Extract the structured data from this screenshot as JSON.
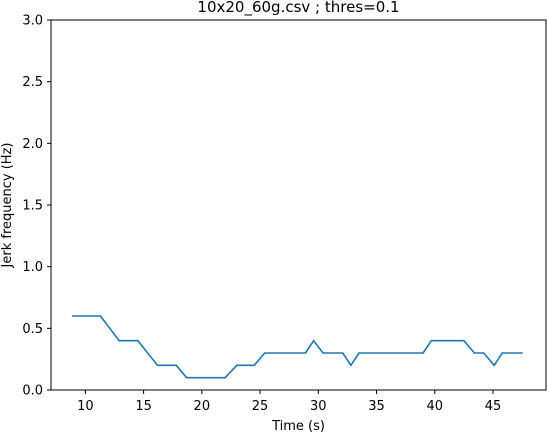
{
  "chart_data": {
    "type": "line",
    "title": "10x20_60g.csv ; thres=0.1",
    "xlabel": "Time (s)",
    "ylabel": "Jerk frequency (Hz)",
    "xlim": [
      7.05,
      49.55
    ],
    "ylim": [
      0,
      3.0
    ],
    "xticks": [
      10,
      15,
      20,
      25,
      30,
      35,
      40,
      45
    ],
    "yticks": [
      0.0,
      0.5,
      1.0,
      1.5,
      2.0,
      2.5,
      3.0
    ],
    "xtick_labels": [
      "10",
      "15",
      "20",
      "25",
      "30",
      "35",
      "40",
      "45"
    ],
    "ytick_labels": [
      "0.0",
      "0.5",
      "1.0",
      "1.5",
      "2.0",
      "2.5",
      "3.0"
    ],
    "grid": false,
    "series": [
      {
        "color": "#1f77b4",
        "x": [
          8.9,
          11.3,
          12.9,
          14.5,
          16.2,
          17.8,
          18.7,
          20.4,
          22.0,
          23.0,
          24.5,
          25.4,
          28.9,
          29.6,
          30.4,
          32.1,
          32.8,
          33.5,
          39.0,
          39.7,
          42.5,
          43.4,
          44.2,
          45.1,
          45.8,
          47.5
        ],
        "y": [
          0.6,
          0.6,
          0.4,
          0.4,
          0.2,
          0.2,
          0.1,
          0.1,
          0.1,
          0.2,
          0.2,
          0.3,
          0.3,
          0.4,
          0.3,
          0.3,
          0.2,
          0.3,
          0.3,
          0.4,
          0.4,
          0.3,
          0.3,
          0.2,
          0.3,
          0.3
        ]
      }
    ]
  }
}
